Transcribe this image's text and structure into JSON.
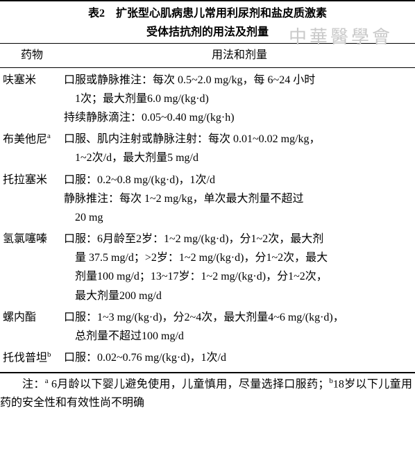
{
  "title_bold": "表2",
  "title_line1_rest": "　扩张型心肌病患儿常用利尿剂和盐皮质激素",
  "title_line2": "受体拮抗剂的用法及剂量",
  "watermark": "中華醫學會",
  "header_col1": "药物",
  "header_col2": "用法和剂量",
  "rows": [
    {
      "name": "呋塞米",
      "usage_lines": [
        "口服或静脉推注：每次 0.5~2.0 mg/kg，每 6~24 小时",
        "　1次；最大剂量6.0 mg/(kg·d)",
        "持续静脉滴注：0.05~0.40 mg/(kg·h)"
      ]
    },
    {
      "name_html": "布美他尼<sup>a</sup>",
      "usage_lines": [
        "口服、肌内注射或静脉注射：每次 0.01~0.02 mg/kg，",
        "　1~2次/d，最大剂量5 mg/d"
      ]
    },
    {
      "name": "托拉塞米",
      "usage_lines": [
        "口服：0.2~0.8 mg/(kg·d)，1次/d",
        "静脉推注：每次 1~2 mg/kg，单次最大剂量不超过",
        "　20 mg"
      ]
    },
    {
      "name": "氢氯噻嗪",
      "usage_lines": [
        "口服：6月龄至2岁：1~2 mg/(kg·d)，分1~2次，最大剂",
        "　量 37.5 mg/d；>2岁：1~2 mg/(kg·d)，分1~2次，最大",
        "　剂量100 mg/d；13~17岁：1~2 mg/(kg·d)，分1~2次，",
        "　最大剂量200 mg/d"
      ]
    },
    {
      "name": "螺内酯",
      "usage_lines": [
        "口服：1~3 mg/(kg·d)，分2~4次，最大剂量4~6 mg/(kg·d)，",
        "　总剂量不超过100 mg/d"
      ]
    },
    {
      "name_html": "托伐普坦<sup>b</sup>",
      "usage_lines": [
        "口服：0.02~0.76 mg/(kg·d)，1次/d"
      ]
    }
  ],
  "footnote_html": "注：<sup>a</sup> 6月龄以下婴儿避免使用，儿童慎用，尽量选择口服药；<sup>b</sup>18岁以下儿童用药的安全性和有效性尚不明确"
}
